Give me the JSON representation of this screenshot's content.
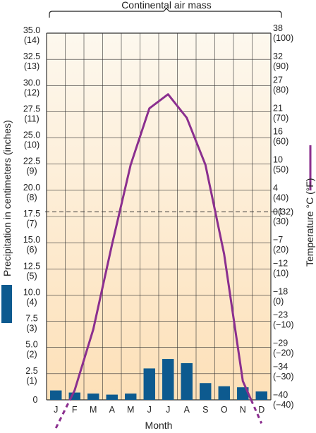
{
  "chart_data": {
    "type": "bar",
    "title": "Continental air mass",
    "xlabel": "Month",
    "ylabel_left": "Precipitation in centimeters (inches)",
    "ylabel_right": "Temperature °C (°F)",
    "categories": [
      "J",
      "F",
      "M",
      "A",
      "M",
      "J",
      "J",
      "A",
      "S",
      "O",
      "N",
      "D"
    ],
    "left_ticks": [
      {
        "value": 0,
        "line1": "0",
        "line2": ""
      },
      {
        "value": 2.5,
        "line1": "2.5",
        "line2": "(1)"
      },
      {
        "value": 5.0,
        "line1": "5.0",
        "line2": "(2)"
      },
      {
        "value": 7.5,
        "line1": "7.5",
        "line2": "(3)"
      },
      {
        "value": 10.0,
        "line1": "10.0",
        "line2": "(4)"
      },
      {
        "value": 12.5,
        "line1": "12.5",
        "line2": "(5)"
      },
      {
        "value": 15.0,
        "line1": "15.0",
        "line2": "(6)"
      },
      {
        "value": 17.5,
        "line1": "17.5",
        "line2": "(7)"
      },
      {
        "value": 20.0,
        "line1": "20.0",
        "line2": "(8)"
      },
      {
        "value": 22.5,
        "line1": "22.5",
        "line2": "(9)"
      },
      {
        "value": 25.0,
        "line1": "25.0",
        "line2": "(10)"
      },
      {
        "value": 27.5,
        "line1": "27.5",
        "line2": "(11)"
      },
      {
        "value": 30.0,
        "line1": "30.0",
        "line2": "(12)"
      },
      {
        "value": 32.5,
        "line1": "32.5",
        "line2": "(13)"
      },
      {
        "value": 35.0,
        "line1": "35.0",
        "line2": "(14)"
      }
    ],
    "right_ticks": [
      {
        "value": -40,
        "line1": "−40",
        "line2": "(−40)"
      },
      {
        "value": -34,
        "line1": "−34",
        "line2": "(−30)"
      },
      {
        "value": -29,
        "line1": "−29",
        "line2": "(−20)"
      },
      {
        "value": -23,
        "line1": "−23",
        "line2": "(−10)"
      },
      {
        "value": -18,
        "line1": "−18",
        "line2": "(0)"
      },
      {
        "value": -12,
        "line1": "−12",
        "line2": "(10)"
      },
      {
        "value": -7,
        "line1": "−7",
        "line2": "(20)"
      },
      {
        "value": -1,
        "line1": "−1",
        "line2": "(30)"
      },
      {
        "value": 0,
        "line1": "0(32)",
        "line2": ""
      },
      {
        "value": 4,
        "line1": "4",
        "line2": "(40)"
      },
      {
        "value": 10,
        "line1": "10",
        "line2": "(50)"
      },
      {
        "value": 16,
        "line1": "16",
        "line2": "(60)"
      },
      {
        "value": 21,
        "line1": "21",
        "line2": "(70)"
      },
      {
        "value": 27,
        "line1": "27",
        "line2": "(80)"
      },
      {
        "value": 32,
        "line1": "32",
        "line2": "(90)"
      },
      {
        "value": 38,
        "line1": "38",
        "line2": "(100)"
      }
    ],
    "ylim_left": [
      0,
      35
    ],
    "ylim_right": [
      -40,
      38
    ],
    "freezing_line": 0,
    "grid": true,
    "legend": "side",
    "series": [
      {
        "axis": "left",
        "kind": "bar",
        "color": "#0d5a8f",
        "values": [
          0.9,
          0.7,
          0.6,
          0.5,
          0.6,
          3.0,
          3.9,
          3.5,
          1.6,
          1.3,
          1.2,
          0.8
        ]
      },
      {
        "axis": "right",
        "kind": "line",
        "color": "#8b2f8f",
        "values": [
          -46,
          -38,
          -25,
          -7,
          10,
          22,
          25,
          20,
          10,
          -9,
          -36,
          -45
        ]
      }
    ],
    "colors": {
      "precipitation": "#0d5a8f",
      "temperature": "#8b2f8f",
      "background_top": "#fdf8ee",
      "background_bottom": "#fde0b8"
    }
  }
}
